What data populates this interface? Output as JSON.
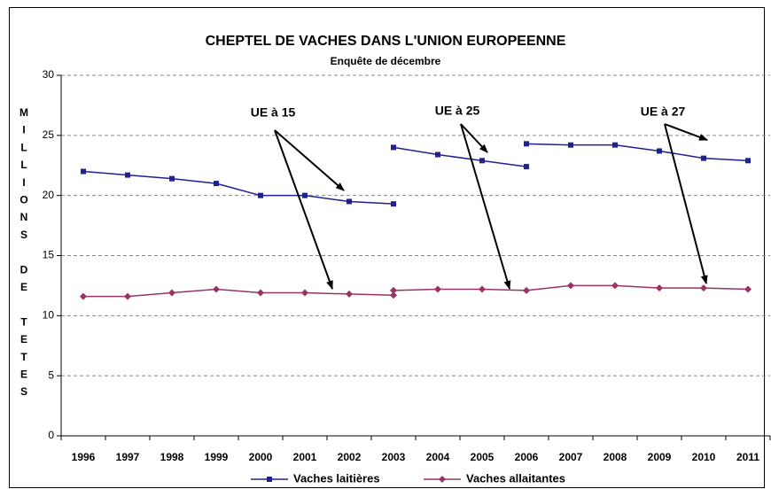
{
  "chart_data": {
    "type": "line",
    "title": "CHEPTEL DE VACHES DANS L'UNION EUROPEENNE",
    "subtitle": "Enquête de décembre",
    "y_label": "MILLIONS DE TETES",
    "categories": [
      "1996",
      "1997",
      "1998",
      "1999",
      "2000",
      "2001",
      "2002",
      "2003",
      "2004",
      "2005",
      "2006",
      "2007",
      "2008",
      "2009",
      "2010",
      "2011"
    ],
    "series": [
      {
        "name": "Vaches laitières",
        "color": "#202090",
        "marker": "square",
        "values": [
          22.0,
          21.7,
          21.4,
          21.0,
          20.0,
          20.0,
          19.5,
          19.3,
          null,
          null,
          null,
          null,
          null,
          null,
          null,
          null
        ]
      },
      {
        "color": "#202090",
        "marker": "square",
        "values": [
          null,
          null,
          null,
          null,
          null,
          null,
          null,
          24.0,
          23.4,
          22.9,
          22.4,
          null,
          null,
          null,
          null,
          null
        ]
      },
      {
        "color": "#202090",
        "marker": "square",
        "values": [
          null,
          null,
          null,
          null,
          null,
          null,
          null,
          null,
          null,
          null,
          24.3,
          24.2,
          24.2,
          23.7,
          23.1,
          22.9
        ]
      },
      {
        "name": "Vaches allaitantes",
        "color": "#993366",
        "marker": "diamond",
        "values": [
          11.6,
          11.6,
          11.9,
          12.2,
          11.9,
          11.9,
          11.8,
          11.7,
          null,
          null,
          null,
          null,
          null,
          null,
          null,
          null
        ]
      },
      {
        "color": "#993366",
        "marker": "diamond",
        "values": [
          null,
          null,
          null,
          null,
          null,
          null,
          null,
          12.1,
          12.2,
          12.2,
          12.1,
          12.5,
          12.5,
          12.3,
          12.3,
          12.2
        ]
      }
    ],
    "annotations": [
      "UE à 15",
      "UE à 25",
      "UE à 27"
    ],
    "ylim": [
      0,
      30
    ],
    "yticks": [
      0,
      5,
      10,
      15,
      20,
      25,
      30
    ],
    "grid": true
  }
}
